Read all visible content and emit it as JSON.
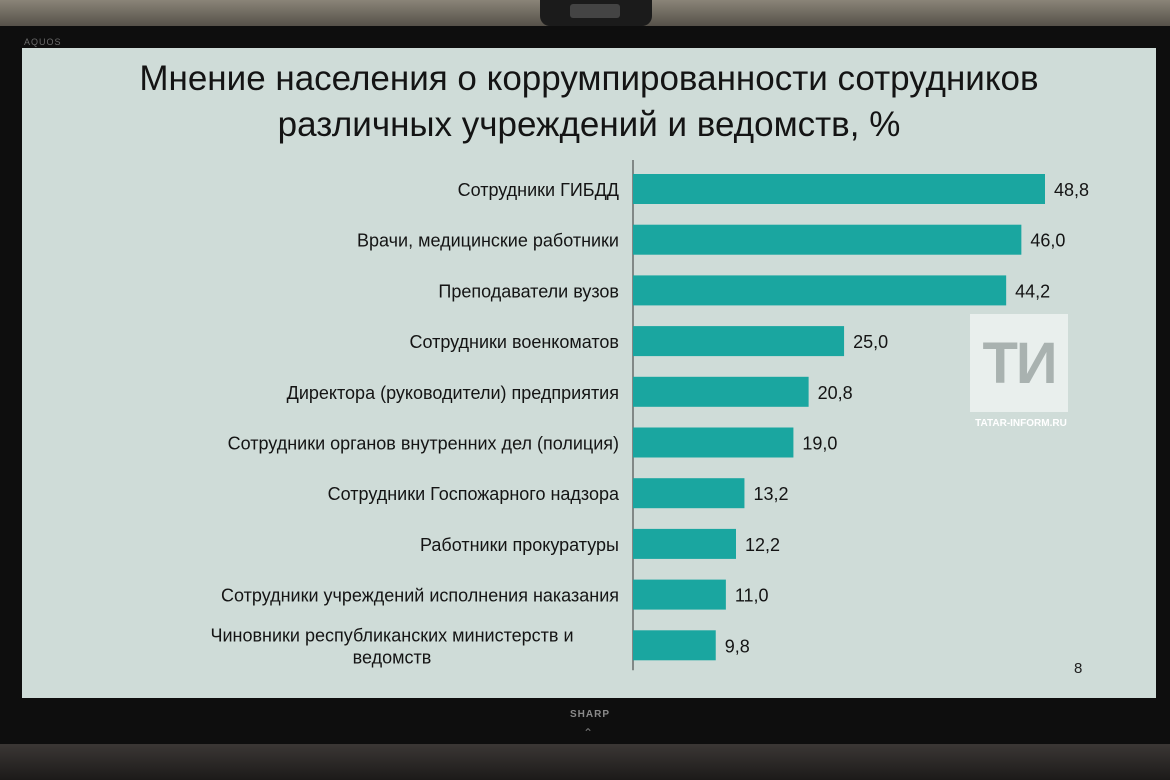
{
  "tv": {
    "brand_top": "AQUOS",
    "brand_bottom": "SHARP"
  },
  "slide": {
    "number": "8"
  },
  "watermark": {
    "letters": "ТИ",
    "site": "TATAR-INFORM.RU"
  },
  "colors": {
    "bar": "#1aa6a0",
    "screen_bg": "#cfdcd8"
  },
  "chart_data": {
    "type": "bar",
    "orientation": "horizontal",
    "title": "Мнение населения о коррумпированности сотрудников различных учреждений и ведомств, %",
    "title_lines": [
      "Мнение населения о коррумпированности сотрудников",
      "различных учреждений и ведомств, %"
    ],
    "categories": [
      [
        "Сотрудники ГИБДД"
      ],
      [
        "Врачи, медицинские работники"
      ],
      [
        "Преподаватели вузов"
      ],
      [
        "Сотрудники военкоматов"
      ],
      [
        "Директора (руководители) предприятия"
      ],
      [
        "Сотрудники органов внутренних дел (полиция)"
      ],
      [
        "Сотрудники  Госпожарного надзора"
      ],
      [
        "Работники прокуратуры"
      ],
      [
        "Сотрудники учреждений исполнения наказания"
      ],
      [
        "Чиновники республиканских министерств и",
        "ведомств"
      ]
    ],
    "values": [
      48.8,
      46.0,
      44.2,
      25.0,
      20.8,
      19.0,
      13.2,
      12.2,
      11.0,
      9.8
    ],
    "value_labels": [
      "48,8",
      "46,0",
      "44,2",
      "25,0",
      "20,8",
      "19,0",
      "13,2",
      "12,2",
      "11,0",
      "9,8"
    ],
    "xlim": [
      0,
      48.8
    ],
    "grid": false,
    "legend": "none"
  }
}
